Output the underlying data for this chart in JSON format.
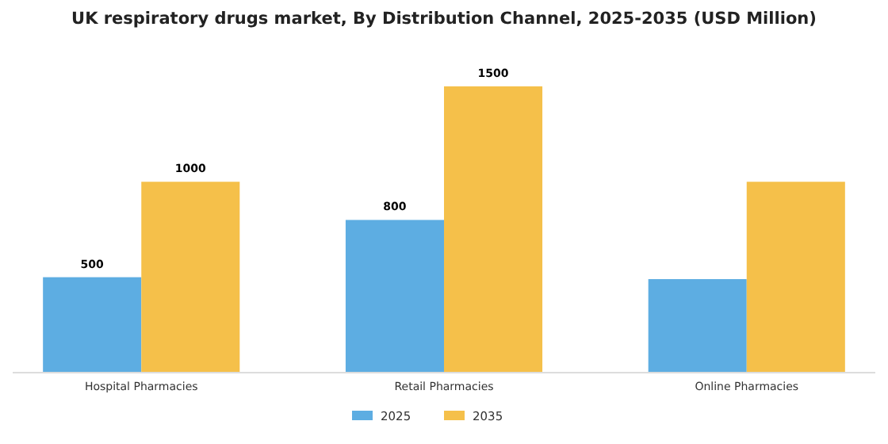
{
  "chart_data": {
    "type": "bar",
    "title": "UK respiratory drugs market, By Distribution Channel, 2025-2035 (USD Million)",
    "categories": [
      "Hospital Pharmacies",
      "Retail Pharmacies",
      "Online Pharmacies"
    ],
    "series": [
      {
        "name": "2025",
        "color": "#5dade2",
        "values": [
          500,
          800,
          490
        ],
        "value_labels": [
          "500",
          "800",
          null
        ]
      },
      {
        "name": "2035",
        "color": "#f5c04a",
        "values": [
          1000,
          1500,
          1000
        ],
        "value_labels": [
          "1000",
          "1500",
          null
        ]
      }
    ],
    "legend": "bottom"
  }
}
